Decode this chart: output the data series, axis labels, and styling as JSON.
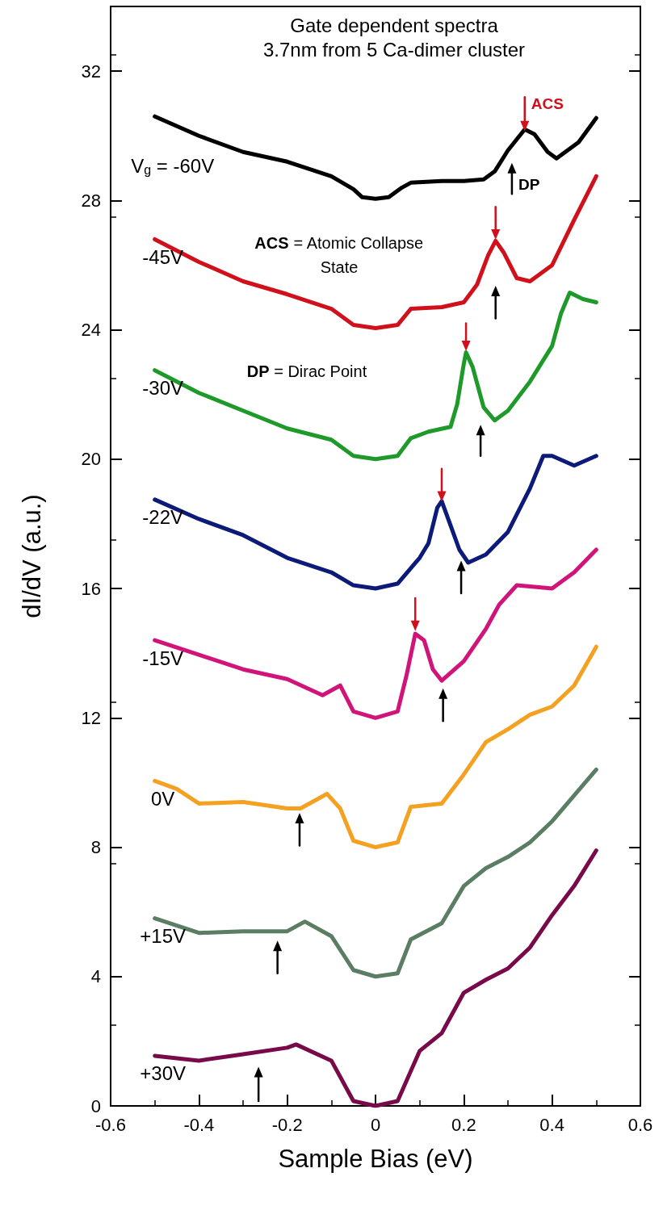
{
  "chart_data": {
    "type": "line",
    "title": "Gate dependent spectra",
    "subtitle": "3.7nm from 5 Ca-dimer cluster",
    "xlabel": "Sample Bias (eV)",
    "ylabel": "dI/dV (a.u.)",
    "xlim": [
      -0.6,
      0.6
    ],
    "xticks": [
      -0.6,
      -0.4,
      -0.2,
      0,
      0.2,
      0.4,
      0.6
    ],
    "ylim": [
      0,
      34
    ],
    "yticks": [
      0,
      4,
      8,
      12,
      16,
      20,
      24,
      28,
      32
    ],
    "grid": false,
    "legend": false,
    "marker": "none",
    "line_style": "solid",
    "annotations": [
      "ACS = Atomic Collapse State",
      "DP = Dirac Point",
      {
        "text": "ACS",
        "x": 0.338,
        "y": 31.0
      },
      {
        "text": "DP",
        "x": 0.309,
        "y": 28.5
      }
    ],
    "series": [
      {
        "name": "V$_{g}$ = -60V",
        "color": "#000000",
        "x": [
          -0.5,
          -0.4,
          -0.3,
          -0.2,
          -0.1,
          -0.05,
          -0.03,
          0,
          0.03,
          0.06,
          0.08,
          0.15,
          0.2,
          0.245,
          0.27,
          0.3,
          0.338,
          0.36,
          0.39,
          0.41,
          0.46,
          0.5
        ],
        "values": [
          30.6,
          30.0,
          29.5,
          29.2,
          28.75,
          28.35,
          28.1,
          28.05,
          28.1,
          28.4,
          28.55,
          28.6,
          28.6,
          28.65,
          28.9,
          29.55,
          30.2,
          30.05,
          29.5,
          29.3,
          29.8,
          30.55
        ]
      },
      {
        "name": "-45V",
        "color": "#d0101a",
        "x": [
          -0.5,
          -0.4,
          -0.3,
          -0.2,
          -0.1,
          -0.05,
          0,
          0.05,
          0.08,
          0.15,
          0.2,
          0.23,
          0.255,
          0.272,
          0.29,
          0.32,
          0.35,
          0.4,
          0.45,
          0.5
        ],
        "values": [
          26.8,
          26.1,
          25.5,
          25.1,
          24.65,
          24.15,
          24.05,
          24.15,
          24.65,
          24.7,
          24.85,
          25.4,
          26.3,
          26.75,
          26.4,
          25.6,
          25.5,
          26.0,
          27.4,
          28.75
        ]
      },
      {
        "name": "-30V",
        "color": "#1f9a2a",
        "x": [
          -0.5,
          -0.4,
          -0.3,
          -0.2,
          -0.1,
          -0.05,
          0,
          0.05,
          0.08,
          0.12,
          0.17,
          0.185,
          0.2,
          0.205,
          0.22,
          0.245,
          0.27,
          0.3,
          0.35,
          0.4,
          0.42,
          0.44,
          0.47,
          0.5
        ],
        "values": [
          22.75,
          22.05,
          21.5,
          20.95,
          20.6,
          20.1,
          20.0,
          20.1,
          20.65,
          20.85,
          21.0,
          21.7,
          22.95,
          23.3,
          22.85,
          21.6,
          21.2,
          21.5,
          22.4,
          23.5,
          24.5,
          25.15,
          24.95,
          24.85
        ]
      },
      {
        "name": "-22V",
        "color": "#0c1a78",
        "x": [
          -0.5,
          -0.4,
          -0.3,
          -0.2,
          -0.1,
          -0.05,
          0,
          0.05,
          0.1,
          0.12,
          0.14,
          0.15,
          0.17,
          0.19,
          0.21,
          0.25,
          0.3,
          0.35,
          0.38,
          0.4,
          0.45,
          0.5
        ],
        "values": [
          18.75,
          18.15,
          17.65,
          16.95,
          16.5,
          16.1,
          16.0,
          16.15,
          16.95,
          17.4,
          18.5,
          18.7,
          17.95,
          17.2,
          16.8,
          17.05,
          17.75,
          19.1,
          20.1,
          20.1,
          19.8,
          20.1
        ]
      },
      {
        "name": "-15V",
        "color": "#d0147a",
        "x": [
          -0.5,
          -0.4,
          -0.3,
          -0.2,
          -0.12,
          -0.08,
          -0.05,
          0,
          0.05,
          0.07,
          0.09,
          0.11,
          0.13,
          0.15,
          0.2,
          0.25,
          0.28,
          0.32,
          0.4,
          0.45,
          0.5
        ],
        "values": [
          14.4,
          13.95,
          13.5,
          13.2,
          12.7,
          13.0,
          12.2,
          12.0,
          12.2,
          13.3,
          14.6,
          14.4,
          13.5,
          13.15,
          13.75,
          14.75,
          15.5,
          16.1,
          16.0,
          16.5,
          17.2
        ]
      },
      {
        "name": "0V",
        "color": "#f4a020",
        "x": [
          -0.5,
          -0.45,
          -0.4,
          -0.3,
          -0.2,
          -0.17,
          -0.13,
          -0.11,
          -0.08,
          -0.05,
          0,
          0.05,
          0.08,
          0.15,
          0.2,
          0.25,
          0.3,
          0.35,
          0.4,
          0.45,
          0.5
        ],
        "values": [
          10.05,
          9.8,
          9.35,
          9.4,
          9.2,
          9.2,
          9.5,
          9.65,
          9.2,
          8.2,
          8.0,
          8.15,
          9.25,
          9.35,
          10.25,
          11.25,
          11.65,
          12.1,
          12.35,
          13.0,
          14.2
        ]
      },
      {
        "name": "+15V",
        "color": "#5a7d64",
        "x": [
          -0.5,
          -0.4,
          -0.3,
          -0.2,
          -0.16,
          -0.1,
          -0.05,
          0,
          0.05,
          0.08,
          0.15,
          0.2,
          0.25,
          0.3,
          0.35,
          0.4,
          0.45,
          0.5
        ],
        "values": [
          5.8,
          5.35,
          5.4,
          5.4,
          5.7,
          5.25,
          4.2,
          4.0,
          4.1,
          5.15,
          5.65,
          6.8,
          7.35,
          7.7,
          8.15,
          8.8,
          9.6,
          10.4
        ]
      },
      {
        "name": "+30V",
        "color": "#780a4a",
        "x": [
          -0.5,
          -0.4,
          -0.3,
          -0.2,
          -0.18,
          -0.1,
          -0.05,
          0,
          0.05,
          0.1,
          0.15,
          0.2,
          0.25,
          0.3,
          0.35,
          0.4,
          0.45,
          0.5
        ],
        "values": [
          1.55,
          1.4,
          1.6,
          1.8,
          1.9,
          1.4,
          0.15,
          0.0,
          0.15,
          1.7,
          2.25,
          3.5,
          3.9,
          4.25,
          4.9,
          5.9,
          6.8,
          7.9
        ]
      },
      {
        "color": "#d0101a",
        "marker": "triangle",
        "x": [
          0.338,
          0.338
        ],
        "values": [
          31.2,
          30.3
        ]
      },
      {
        "color": "#d0101a",
        "marker": "triangle",
        "x": [
          0.272,
          0.272
        ],
        "values": [
          27.8,
          26.95
        ]
      },
      {
        "color": "#d0101a",
        "marker": "triangle",
        "x": [
          0.205,
          0.205
        ],
        "values": [
          24.2,
          23.5
        ]
      },
      {
        "color": "#d0101a",
        "marker": "triangle",
        "x": [
          0.15,
          0.15
        ],
        "values": [
          19.7,
          18.85
        ]
      },
      {
        "color": "#d0101a",
        "marker": "triangle",
        "x": [
          0.09,
          0.09
        ],
        "values": [
          15.7,
          14.85
        ]
      },
      {
        "color": "#000000",
        "marker": "triangle",
        "x": [
          0.309,
          0.309
        ],
        "values": [
          28.2,
          29.0
        ]
      },
      {
        "color": "#000000",
        "marker": "triangle",
        "x": [
          0.272,
          0.272
        ],
        "values": [
          24.35,
          25.2
        ]
      },
      {
        "color": "#000000",
        "marker": "triangle",
        "x": [
          0.238,
          0.238
        ],
        "values": [
          20.1,
          20.9
        ]
      },
      {
        "color": "#000000",
        "marker": "triangle",
        "x": [
          0.194,
          0.194
        ],
        "values": [
          15.85,
          16.7
        ]
      },
      {
        "color": "#000000",
        "marker": "triangle",
        "x": [
          0.153,
          0.153
        ],
        "values": [
          11.9,
          12.75
        ]
      },
      {
        "color": "#000000",
        "marker": "triangle",
        "x": [
          -0.172,
          -0.172
        ],
        "values": [
          8.05,
          8.9
        ]
      },
      {
        "color": "#000000",
        "marker": "triangle",
        "x": [
          -0.222,
          -0.222
        ],
        "values": [
          4.1,
          4.95
        ]
      },
      {
        "color": "#000000",
        "marker": "triangle",
        "x": [
          -0.265,
          -0.265
        ],
        "values": [
          0.15,
          1.05
        ]
      }
    ]
  }
}
